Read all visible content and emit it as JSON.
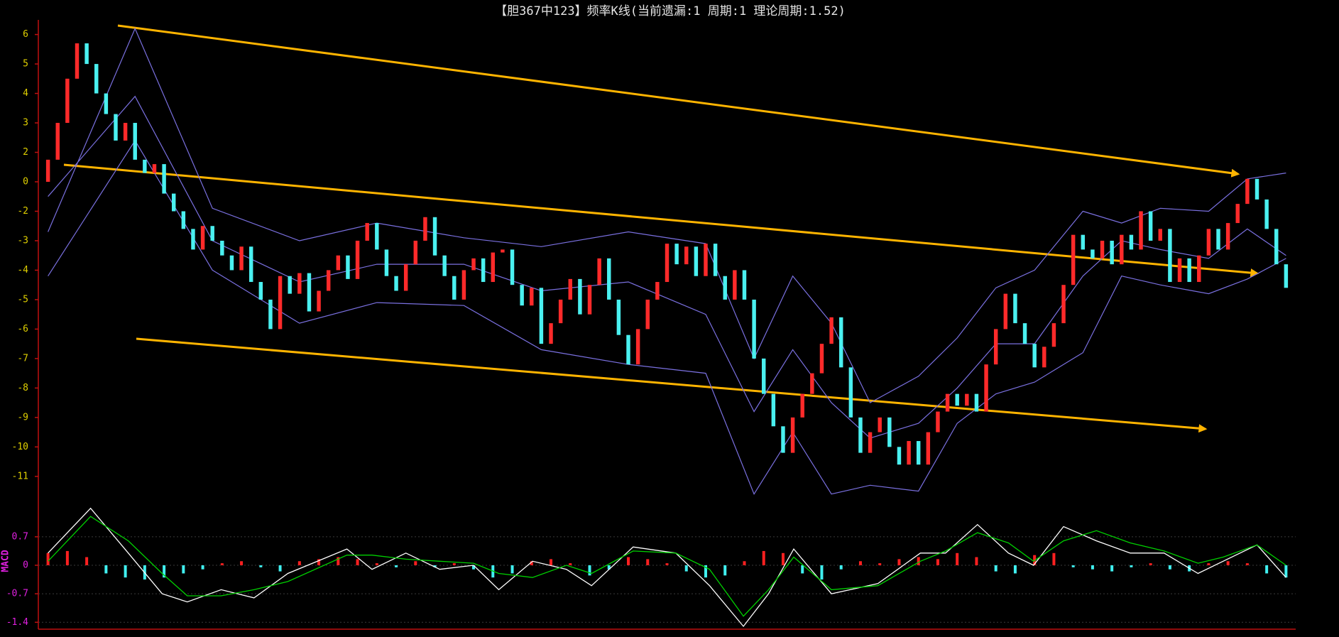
{
  "chart_data": [
    {
      "type": "candlestick",
      "title": "【胆367中123】频率K线(当前遗漏:1 周期:1 理论周期:1.52)",
      "xlim": [
        -1,
        129
      ],
      "ylim": [
        -11.8,
        6.4
      ],
      "yticks": [
        6,
        5,
        4,
        3,
        2,
        0,
        -2,
        -3,
        -4,
        -5,
        -6,
        -7,
        -8,
        -9,
        -10,
        -11
      ],
      "up_color": "#ff2a2a",
      "down_color": "#4af0f0",
      "band_color": "#7a70e0",
      "open": 0,
      "close": [
        1.5,
        3,
        4.5,
        5.7,
        5,
        4,
        3.3,
        2.4,
        3,
        1.5,
        0.6,
        1.2,
        -0.8,
        -2,
        -2.6,
        -3.3,
        -2.5,
        -3,
        -3.5,
        -4,
        -3.2,
        -4.4,
        -5,
        -6,
        -4.2,
        -4.8,
        -4.1,
        -5.4,
        -4.7,
        -4,
        -3.5,
        -4.3,
        -3,
        -2.4,
        -3.3,
        -4.2,
        -4.7,
        -3.8,
        -3,
        -2.2,
        -3.5,
        -4.2,
        -5,
        -4,
        -3.6,
        -4.4,
        -3.4,
        -3.3,
        -4.5,
        -5.2,
        -4.6,
        -6.5,
        -5.8,
        -5,
        -4.3,
        -5.5,
        -4.5,
        -3.6,
        -5,
        -6.2,
        -7.2,
        -6,
        -5,
        -4.4,
        -3.1,
        -3.8,
        -3.2,
        -4.2,
        -3.1,
        -4.2,
        -5,
        -4,
        -5,
        -7,
        -8.2,
        -9.3,
        -10.2,
        -9,
        -8.2,
        -7.5,
        -6.5,
        -5.6,
        -7.3,
        -9,
        -10.2,
        -9.5,
        -9,
        -10,
        -10.6,
        -9.8,
        -10.6,
        -9.5,
        -8.8,
        -8.2,
        -8.6,
        -8.2,
        -8.8,
        -7.2,
        -6,
        -4.8,
        -5.8,
        -6.5,
        -7.3,
        -6.6,
        -5.8,
        -4.5,
        -2.8,
        -3.3,
        -3.6,
        -3,
        -3.8,
        -2.8,
        -3.3,
        -2,
        -3,
        -2.6,
        -4.4,
        -3.6,
        -4.4,
        -3.5,
        -2.6,
        -3.3,
        -2.4,
        -1.5,
        0.2,
        -1.2,
        -2.6,
        -3.8,
        -4.6
      ],
      "band_x": [
        0,
        9,
        17,
        26,
        34,
        43,
        51,
        60,
        68,
        73,
        77,
        81,
        85,
        90,
        94,
        98,
        102,
        107,
        111,
        115,
        120,
        124,
        128
      ],
      "bands": [
        {
          "values": [
            -2.7,
            6.2,
            -1.8,
            -3,
            -2.4,
            -2.9,
            -3.2,
            -2.7,
            -3.1,
            -7,
            -4.2,
            -5.8,
            -8.5,
            -7.6,
            -6.3,
            -4.6,
            -4,
            -2,
            -2.4,
            -1.8,
            -2,
            0.2,
            0.6
          ]
        },
        {
          "values": [
            -1,
            3.9,
            -3,
            -4.4,
            -3.8,
            -3.8,
            -4.7,
            -4.4,
            -5.5,
            -8.8,
            -6.7,
            -8.5,
            -9.7,
            -9.2,
            -8,
            -6.5,
            -6.5,
            -4.2,
            -3,
            -3.3,
            -3.6,
            -2.6,
            -3.5
          ]
        },
        {
          "values": [
            -4.2,
            2.4,
            -4,
            -5.8,
            -5.1,
            -5.2,
            -6.7,
            -7.2,
            -7.5,
            -11.6,
            -9.5,
            -11.6,
            -11.3,
            -11.5,
            -9.2,
            -8.2,
            -7.8,
            -6.8,
            -4.2,
            -4.5,
            -4.8,
            -4.3,
            -3.6
          ]
        }
      ]
    },
    {
      "type": "macd",
      "axis_label": "MACD",
      "xlim": [
        -1,
        129
      ],
      "ylim": [
        -1.5,
        1.5
      ],
      "yticks": [
        0.7,
        0,
        -0.7,
        -1.4
      ],
      "grid": true,
      "x": [
        0,
        4.4,
        8.3,
        11.8,
        14.4,
        17.9,
        21.3,
        24.8,
        30.9,
        33.5,
        37,
        40.5,
        44,
        46.6,
        50.1,
        53.6,
        56.2,
        60.5,
        64.9,
        68.4,
        71.9,
        74.5,
        77.1,
        81,
        85.8,
        90.2,
        92.8,
        96.1,
        99.3,
        101.9,
        105,
        108.4,
        111.9,
        115.4,
        118.9,
        121.5,
        125,
        128
      ],
      "series": [
        {
          "color": "#ffffff",
          "values": [
            0.3,
            1.4,
            0.3,
            -0.7,
            -0.9,
            -0.6,
            -0.8,
            -0.2,
            0.4,
            -0.1,
            0.3,
            -0.1,
            0,
            -0.6,
            0.1,
            -0.1,
            -0.5,
            0.45,
            0.3,
            -0.5,
            -1.5,
            -0.7,
            0.4,
            -0.7,
            -0.45,
            0.3,
            0.3,
            1,
            0.3,
            0,
            0.95,
            0.6,
            0.3,
            0.3,
            -0.2,
            0.1,
            0.5,
            -0.3
          ]
        },
        {
          "color": "#00d000",
          "values": [
            0.1,
            1.2,
            0.6,
            -0.2,
            -0.75,
            -0.75,
            -0.6,
            -0.4,
            0.25,
            0.25,
            0.15,
            0.1,
            0.05,
            -0.2,
            -0.3,
            0,
            -0.2,
            0.35,
            0.3,
            -0.1,
            -1.25,
            -0.6,
            0.2,
            -0.6,
            -0.5,
            0.1,
            0.35,
            0.8,
            0.55,
            0.1,
            0.6,
            0.85,
            0.55,
            0.35,
            0.05,
            0.2,
            0.5,
            0
          ]
        }
      ],
      "hist": {
        "up_color": "#ff2020",
        "down_color": "#40f0f0",
        "x": [
          0,
          2,
          4,
          6,
          8,
          10,
          12,
          14,
          16,
          18,
          20,
          22,
          24,
          26,
          28,
          30,
          32,
          34,
          36,
          38,
          40,
          42,
          44,
          46,
          48,
          50,
          52,
          54,
          56,
          58,
          60,
          62,
          64,
          66,
          68,
          70,
          72,
          74,
          76,
          78,
          80,
          82,
          84,
          86,
          88,
          90,
          92,
          94,
          96,
          98,
          100,
          102,
          104,
          106,
          108,
          110,
          112,
          114,
          116,
          118,
          120,
          122,
          124,
          126,
          128
        ],
        "values": [
          0.3,
          0.35,
          0.2,
          -0.2,
          -0.3,
          -0.35,
          -0.3,
          -0.2,
          -0.1,
          0.05,
          0.1,
          -0.05,
          -0.15,
          0.1,
          0.15,
          0.2,
          0.15,
          0.05,
          -0.05,
          0.1,
          -0.05,
          0.05,
          -0.1,
          -0.3,
          -0.2,
          0.1,
          0.15,
          0.05,
          -0.25,
          -0.1,
          0.2,
          0.15,
          0.05,
          -0.15,
          -0.3,
          -0.25,
          0.1,
          0.35,
          0.3,
          -0.2,
          -0.35,
          -0.1,
          0.1,
          0.05,
          0.15,
          0.2,
          0.15,
          0.3,
          0.2,
          -0.15,
          -0.2,
          0.25,
          0.3,
          -0.05,
          -0.1,
          -0.15,
          -0.05,
          0.05,
          -0.1,
          -0.15,
          0.05,
          0.1,
          0.05,
          -0.2,
          -0.3
        ]
      }
    }
  ]
}
